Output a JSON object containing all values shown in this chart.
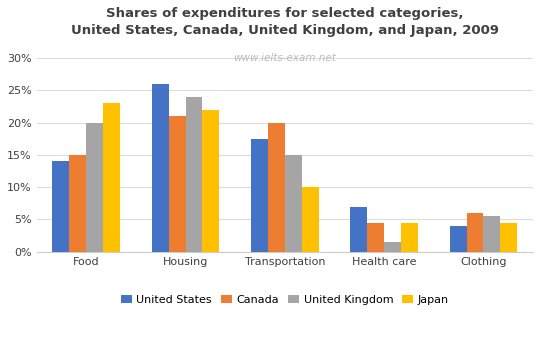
{
  "title": "Shares of expenditures for selected categories,\nUnited States, Canada, United Kingdom, and Japan, 2009",
  "watermark": "www.ielts-exam.net",
  "categories": [
    "Food",
    "Housing",
    "Transportation",
    "Health care",
    "Clothing"
  ],
  "countries": [
    "United States",
    "Canada",
    "United Kingdom",
    "Japan"
  ],
  "values": {
    "United States": [
      14,
      26,
      17.5,
      7,
      4
    ],
    "Canada": [
      15,
      21,
      20,
      4.5,
      6
    ],
    "United Kingdom": [
      20,
      24,
      15,
      1.5,
      5.5
    ],
    "Japan": [
      23,
      22,
      10,
      4.5,
      4.5
    ]
  },
  "colors": {
    "United States": "#4472C4",
    "Canada": "#ED7D31",
    "United Kingdom": "#A5A5A5",
    "Japan": "#FFC000"
  },
  "ylim": [
    0,
    32
  ],
  "yticks": [
    0,
    5,
    10,
    15,
    20,
    25,
    30
  ],
  "title_fontsize": 9.5,
  "title_color": "#404040",
  "watermark_color": "#BBBBBB",
  "watermark_fontsize": 7.5,
  "legend_fontsize": 8,
  "tick_fontsize": 8,
  "cat_fontsize": 8,
  "background_color": "#FFFFFF",
  "grid_color": "#DDDDDD"
}
